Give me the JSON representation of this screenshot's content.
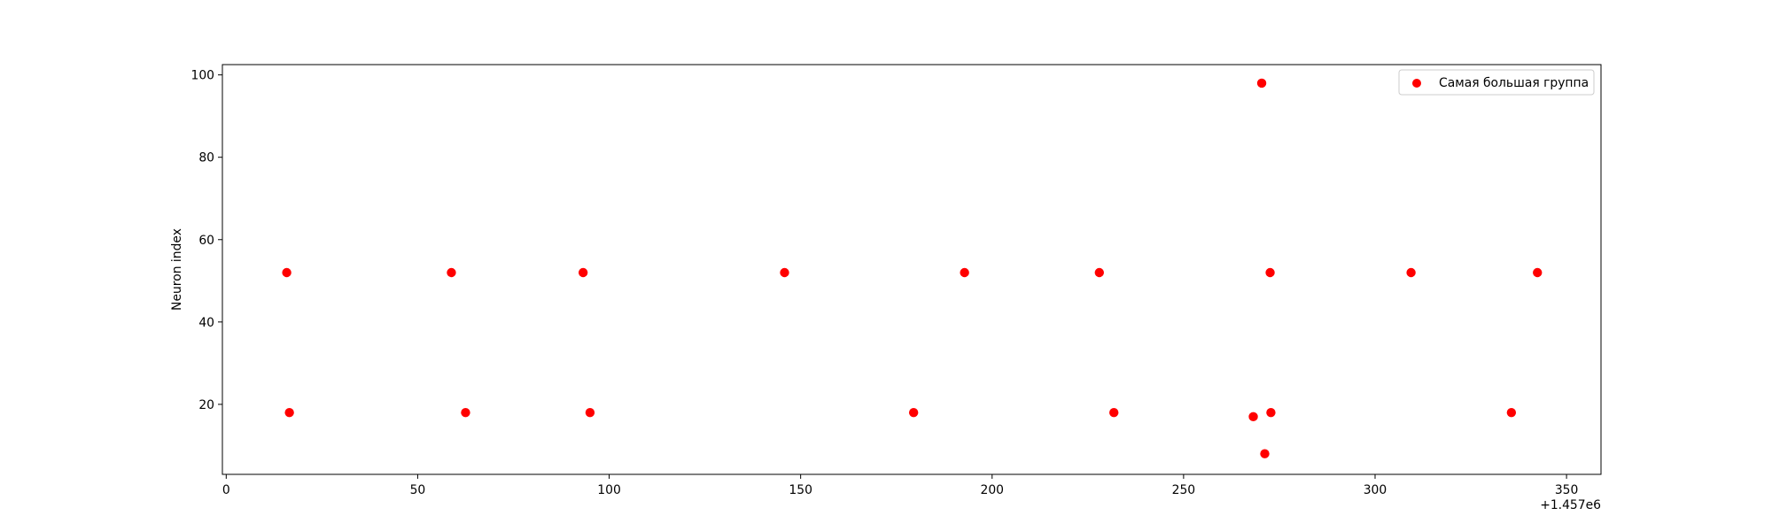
{
  "chart_data": {
    "type": "scatter",
    "title": "",
    "xlabel": "",
    "ylabel": "Neuron index",
    "x_offset_label": "+1.457e6",
    "xlim": [
      -1,
      359
    ],
    "ylim": [
      3,
      102.5
    ],
    "xticks": [
      0,
      50,
      100,
      150,
      200,
      250,
      300,
      350
    ],
    "xtick_labels": [
      "0",
      "50",
      "100",
      "150",
      "200",
      "250",
      "300",
      "350"
    ],
    "yticks": [
      20,
      40,
      60,
      80,
      100
    ],
    "ytick_labels": [
      "20",
      "40",
      "60",
      "80",
      "100"
    ],
    "grid": false,
    "legend_position": "top-right",
    "series": [
      {
        "name": "Самая большая группа",
        "color": "#ff0000",
        "points": [
          {
            "x": 15.8,
            "y": 52
          },
          {
            "x": 16.5,
            "y": 18
          },
          {
            "x": 58.8,
            "y": 52
          },
          {
            "x": 62.5,
            "y": 18
          },
          {
            "x": 93.2,
            "y": 52
          },
          {
            "x": 95.0,
            "y": 18
          },
          {
            "x": 145.8,
            "y": 52
          },
          {
            "x": 179.5,
            "y": 18
          },
          {
            "x": 192.8,
            "y": 52
          },
          {
            "x": 228.0,
            "y": 52
          },
          {
            "x": 231.8,
            "y": 18
          },
          {
            "x": 268.2,
            "y": 17
          },
          {
            "x": 270.4,
            "y": 98
          },
          {
            "x": 271.2,
            "y": 8
          },
          {
            "x": 272.6,
            "y": 52
          },
          {
            "x": 272.8,
            "y": 18
          },
          {
            "x": 309.4,
            "y": 52
          },
          {
            "x": 335.6,
            "y": 18
          },
          {
            "x": 342.4,
            "y": 52
          }
        ]
      }
    ]
  }
}
